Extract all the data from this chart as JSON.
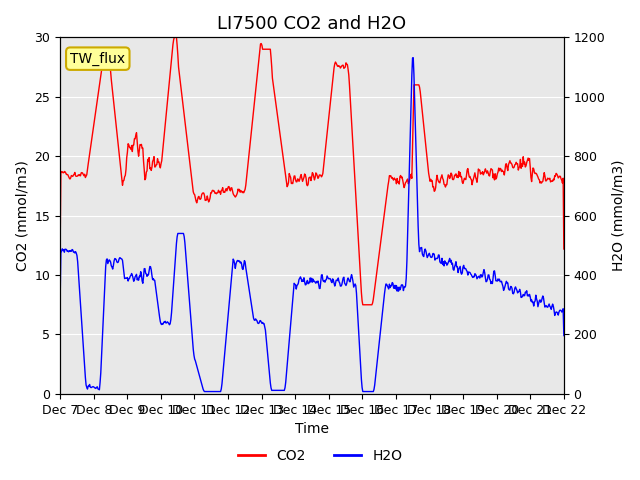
{
  "title": "LI7500 CO2 and H2O",
  "xlabel": "Time",
  "ylabel_left": "CO2 (mmol/m3)",
  "ylabel_right": "H2O (mmol/m3)",
  "ylim_left": [
    0,
    30
  ],
  "ylim_right": [
    0,
    1200
  ],
  "co2_color": "#FF0000",
  "h2o_color": "#0000FF",
  "background_color": "#FFFFFF",
  "plot_bg_color": "#E8E8E8",
  "legend_label": "TW_flux",
  "legend_box_color": "#FFFF99",
  "legend_box_edge": "#CCAA00",
  "x_tick_labels": [
    "Dec 7",
    "Dec 8",
    "Dec 9",
    "Dec 10",
    "Dec 11",
    "Dec 12",
    "Dec 13",
    "Dec 14",
    "Dec 15",
    "Dec 16",
    "Dec 17",
    "Dec 18",
    "Dec 19",
    "Dec 20",
    "Dec 21",
    "Dec 22"
  ],
  "title_fontsize": 13,
  "axis_label_fontsize": 10,
  "tick_fontsize": 9,
  "legend_fontsize": 10
}
